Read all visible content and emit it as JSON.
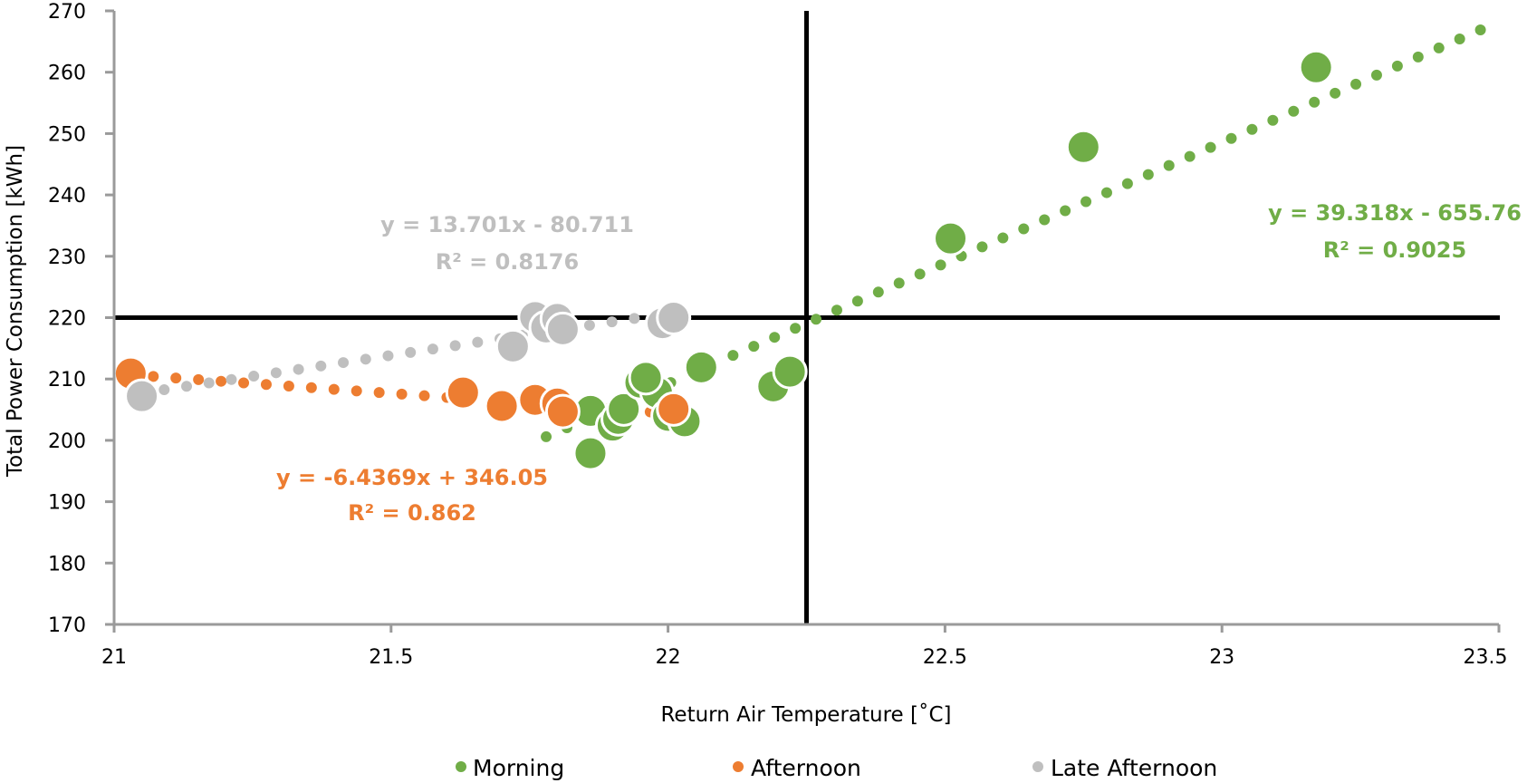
{
  "chart_data": {
    "type": "scatter",
    "xlabel": "Return Air Temperature [˚C]",
    "ylabel": "Total Power Consumption [kWh]",
    "xlim": [
      21,
      23.5
    ],
    "ylim": [
      170,
      270
    ],
    "xticks": [
      "21",
      "21.5",
      "22",
      "22.5",
      "23",
      "23.5"
    ],
    "xtick_values": [
      21,
      21.5,
      22,
      22.5,
      23,
      23.5
    ],
    "yticks": [
      "170",
      "180",
      "190",
      "200",
      "210",
      "220",
      "230",
      "240",
      "250",
      "260",
      "270"
    ],
    "ytick_values": [
      170,
      180,
      190,
      200,
      210,
      220,
      230,
      240,
      250,
      260,
      270
    ],
    "grid": false,
    "legend_position": "bottom",
    "reference_lines": {
      "vertical_x": 22.25,
      "horizontal_y": 220
    },
    "series": [
      {
        "name": "Morning",
        "color": "#70AD47",
        "points": [
          {
            "x": 21.86,
            "y": 197.9
          },
          {
            "x": 21.86,
            "y": 204.8
          },
          {
            "x": 21.9,
            "y": 202.4
          },
          {
            "x": 21.91,
            "y": 203.5
          },
          {
            "x": 21.92,
            "y": 205.1
          },
          {
            "x": 21.95,
            "y": 209.4
          },
          {
            "x": 21.98,
            "y": 207.8
          },
          {
            "x": 22.0,
            "y": 204.0
          },
          {
            "x": 22.03,
            "y": 203.1
          },
          {
            "x": 21.96,
            "y": 210.2
          },
          {
            "x": 22.06,
            "y": 211.9
          },
          {
            "x": 22.19,
            "y": 208.8
          },
          {
            "x": 22.22,
            "y": 211.2
          },
          {
            "x": 22.51,
            "y": 232.9
          },
          {
            "x": 22.75,
            "y": 247.8
          },
          {
            "x": 23.17,
            "y": 260.8
          }
        ],
        "trendline": {
          "equation": "y = 39.318x - 655.76",
          "r2": "R² = 0.9025",
          "slope": 39.318,
          "intercept": -655.76,
          "x_range": [
            21.78,
            23.48
          ]
        }
      },
      {
        "name": "Afternoon",
        "color": "#ED7D31",
        "points": [
          {
            "x": 21.03,
            "y": 210.9
          },
          {
            "x": 21.63,
            "y": 207.8
          },
          {
            "x": 21.7,
            "y": 205.6
          },
          {
            "x": 21.76,
            "y": 206.6
          },
          {
            "x": 21.8,
            "y": 206.0
          },
          {
            "x": 21.81,
            "y": 204.7
          },
          {
            "x": 22.01,
            "y": 205.1
          }
        ],
        "trendline": {
          "equation": "y = -6.4369x + 346.05",
          "r2": "R² = 0.862",
          "slope": -6.4369,
          "intercept": 346.05,
          "x_range": [
            21.03,
            22.01
          ]
        }
      },
      {
        "name": "Late Afternoon",
        "color": "#A5A5A5",
        "points": [
          {
            "x": 21.05,
            "y": 207.2
          },
          {
            "x": 21.72,
            "y": 215.3
          },
          {
            "x": 21.76,
            "y": 220.1
          },
          {
            "x": 21.78,
            "y": 218.4
          },
          {
            "x": 21.8,
            "y": 219.8
          },
          {
            "x": 21.81,
            "y": 218.1
          },
          {
            "x": 21.99,
            "y": 219.1
          },
          {
            "x": 22.01,
            "y": 220.0
          }
        ],
        "trendline": {
          "equation": "y = 13.701x - 80.711",
          "r2": "R² = 0.8176",
          "slope": 13.701,
          "intercept": -80.711,
          "x_range": [
            21.05,
            22.0
          ]
        }
      }
    ]
  }
}
